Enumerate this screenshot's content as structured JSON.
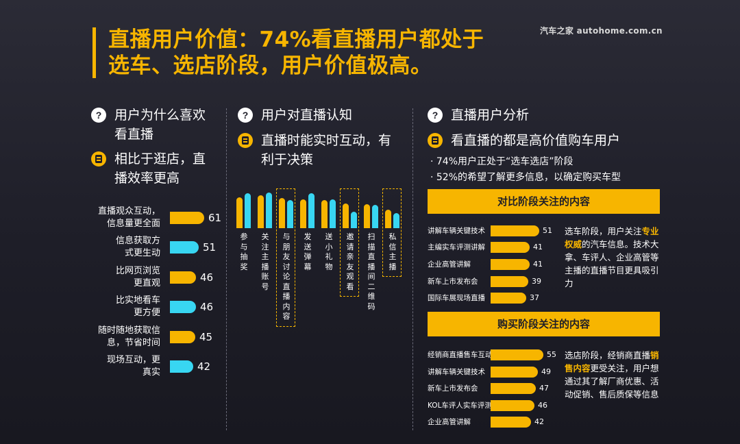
{
  "title": {
    "line1": "直播用户价值：74%看直播用户都处于",
    "line2": "选车、选店阶段，用户价值极高。"
  },
  "logo": "汽车之家 autohome.com.cn",
  "icons": {
    "question": "?",
    "question_icon": "question-circle-icon",
    "answer_icon": "doc-list-icon"
  },
  "colors": {
    "accent": "#f7b500",
    "cyan": "#38d6f2",
    "background": "#1e1e28"
  },
  "left": {
    "question": [
      "用户为什么喜欢",
      "看直播"
    ],
    "answer": [
      "相比于逛店，直",
      "播效率更高"
    ]
  },
  "middle": {
    "question": "用户对直播认知",
    "answer": [
      "直播时能实时互动，有",
      "利于决策"
    ]
  },
  "right": {
    "question": "直播用户分析",
    "answer": "看直播的都是高价值购车用户",
    "bullets": [
      "· 74%用户正处于“选车选店”阶段",
      "· 52%的希望了解更多信息，以确定购买车型"
    ],
    "band1": "对比阶段关注的内容",
    "band2": "购买阶段关注的内容",
    "note1": {
      "pre": "选车阶段，用户关注",
      "hl": "专业权威",
      "post": "的汽车信息。技术大拿、车评人、企业高管等主播的直播节目更具吸引力"
    },
    "note2": {
      "pre": "选店阶段，经销商直播",
      "hl": "销售内容",
      "post": "更受关注，用户想通过其了解厂商优惠、活动促销、售后质保等信息"
    }
  },
  "chart_data": [
    {
      "type": "bar",
      "orientation": "horizontal",
      "categories": [
        "直播观众互动，信息量更全面",
        "信息获取方式更生动",
        "比网页浏览更直观",
        "比实地看车更方便",
        "随时随地获取信息，节省时间",
        "现场互动，更真实"
      ],
      "label_lines": [
        [
          "直播观众互动，",
          "信息量更全面"
        ],
        [
          "信息获取方",
          "式更生动"
        ],
        [
          "比网页浏览",
          "更直观"
        ],
        [
          "比实地看车",
          "更方便"
        ],
        [
          "随时随地获取信",
          "息，节省时间"
        ],
        [
          "现场互动，更",
          "真实"
        ]
      ],
      "values": [
        61,
        51,
        46,
        46,
        45,
        42
      ],
      "colors": [
        "#f7b500",
        "#38d6f2",
        "#f7b500",
        "#38d6f2",
        "#f7b500",
        "#38d6f2"
      ]
    },
    {
      "type": "bar",
      "orientation": "vertical",
      "series": [
        {
          "values": [
            78,
            82,
            76,
            72,
            70,
            62,
            60,
            46
          ]
        },
        {
          "values": [
            88,
            90,
            70,
            88,
            72,
            42,
            58,
            38
          ]
        }
      ],
      "categories": [
        "参与抽奖",
        "关注主播账号",
        "与朋友讨论直播内容",
        "发送弹幕",
        "送小礼物",
        "邀请亲友观看",
        "扫描直播间二维码",
        "私信主播"
      ],
      "highlighted": [
        "与朋友讨论直播内容",
        "邀请亲友观看",
        "私信主播"
      ]
    },
    {
      "type": "bar",
      "orientation": "horizontal",
      "categories": [
        "讲解车辆关键技术",
        "主编实车评测讲解",
        "企业高管讲解",
        "新车上市发布会",
        "国际车展现场直播"
      ],
      "values": [
        51,
        41,
        41,
        39,
        37
      ]
    },
    {
      "type": "bar",
      "orientation": "horizontal",
      "categories": [
        "经销商直播售车互动",
        "讲解车辆关键技术",
        "新车上市发布会",
        "KOL车评人实车评测",
        "企业高管讲解"
      ],
      "values": [
        55,
        49,
        47,
        46,
        42
      ]
    }
  ]
}
